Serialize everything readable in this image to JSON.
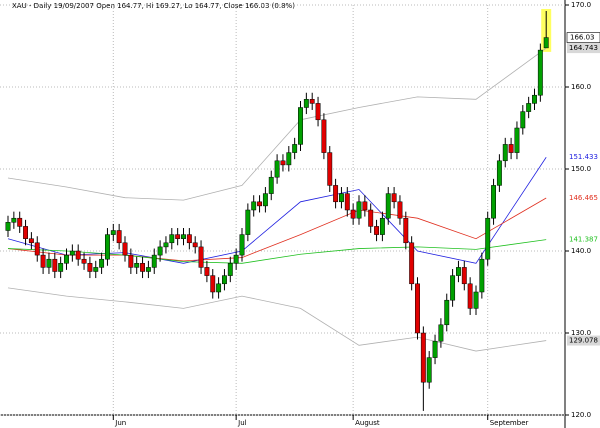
{
  "chart_data": {
    "type": "candlestick",
    "title": "XAU - Daily 19/09/2007 Open 164.77, Hi 169.27, Lo 164.77, Close 166.03 (0.8%)",
    "categories": [
      null,
      null,
      null,
      null,
      null,
      null,
      null,
      null,
      null,
      null,
      null,
      null,
      null,
      null,
      null,
      null,
      null,
      null,
      "Jun",
      null,
      null,
      null,
      null,
      null,
      null,
      null,
      null,
      null,
      null,
      null,
      null,
      null,
      null,
      null,
      null,
      null,
      null,
      null,
      null,
      "Jul",
      null,
      null,
      null,
      null,
      null,
      null,
      null,
      null,
      null,
      null,
      null,
      null,
      null,
      null,
      null,
      null,
      null,
      null,
      null,
      "August",
      null,
      null,
      null,
      null,
      null,
      null,
      null,
      null,
      null,
      null,
      null,
      null,
      null,
      null,
      null,
      null,
      null,
      null,
      null,
      null,
      null,
      null,
      "September",
      null,
      null,
      null,
      null,
      null,
      null,
      null,
      null,
      null,
      null
    ],
    "open": [
      142.5,
      143.5,
      144,
      143,
      141.5,
      141,
      139.5,
      138,
      139,
      137.5,
      138.5,
      139.5,
      140,
      139,
      138.5,
      137.5,
      138,
      139,
      142,
      142.5,
      141,
      139.5,
      138,
      138.5,
      137.5,
      138,
      139.5,
      140.5,
      141,
      142,
      141.5,
      142,
      141,
      140.5,
      138,
      137,
      135,
      136,
      137,
      138.5,
      139.5,
      142,
      145,
      146,
      145.5,
      147,
      149,
      151,
      150.5,
      152,
      153,
      157.5,
      158.5,
      158,
      156,
      152,
      148,
      146,
      147,
      145,
      144,
      146,
      145,
      143,
      142,
      144,
      147,
      146,
      144,
      141,
      136,
      130,
      124,
      127,
      129,
      131,
      134,
      137,
      138,
      136,
      133,
      135,
      139,
      144,
      148,
      151,
      153,
      152,
      155,
      157,
      158,
      159,
      164.77
    ],
    "high": [
      144.3,
      144.8,
      144.8,
      143.8,
      142.3,
      141.8,
      140.3,
      139.8,
      139.8,
      139.3,
      140.3,
      140.8,
      140.8,
      139.8,
      139.3,
      138.8,
      139.8,
      142.8,
      143.3,
      143.3,
      141.8,
      140.3,
      139.3,
      139.3,
      138.8,
      140.3,
      141.3,
      141.8,
      142.8,
      142.8,
      142.8,
      142.8,
      141.8,
      141.3,
      138.8,
      137.8,
      136.8,
      137.8,
      139.3,
      140.3,
      142.8,
      145.8,
      146.8,
      146.8,
      147.8,
      149.8,
      151.8,
      151.8,
      152.8,
      153.8,
      158.3,
      159.3,
      159.3,
      158.8,
      156.8,
      152.8,
      148.8,
      147.8,
      147.8,
      145.8,
      146.8,
      146.8,
      145.8,
      143.8,
      144.8,
      147.8,
      147.8,
      146.8,
      144.8,
      141.8,
      136.8,
      130.8,
      127.8,
      129.8,
      131.8,
      134.8,
      137.8,
      138.8,
      138.8,
      136.8,
      135.8,
      139.8,
      144.8,
      148.8,
      151.8,
      153.8,
      153.8,
      155.8,
      157.8,
      158.8,
      159.8,
      165.3,
      169.27
    ],
    "low": [
      141.7,
      142.7,
      142.2,
      140.7,
      140.2,
      138.7,
      137.2,
      137.2,
      136.7,
      136.7,
      137.7,
      138.7,
      138.2,
      137.7,
      136.7,
      136.7,
      137.2,
      138.2,
      141.2,
      140.2,
      138.7,
      137.2,
      137.2,
      136.7,
      136.7,
      137.2,
      138.7,
      139.7,
      140.2,
      140.7,
      140.7,
      140.2,
      139.7,
      137.2,
      136.2,
      134.2,
      134.2,
      135.2,
      136.2,
      137.7,
      138.7,
      141.2,
      144.2,
      144.7,
      144.7,
      146.2,
      148.2,
      149.7,
      149.7,
      151.2,
      152.2,
      156.7,
      157.2,
      155.2,
      151.2,
      147.2,
      145.2,
      145.2,
      144.2,
      143.2,
      143.2,
      144.2,
      142.2,
      141.2,
      141.2,
      143.2,
      145.2,
      143.2,
      140.2,
      135.2,
      129.2,
      120.5,
      123.2,
      126.2,
      128.2,
      130.2,
      133.2,
      136.2,
      135.2,
      132.2,
      132.2,
      134.2,
      138.2,
      143.2,
      147.2,
      150.2,
      151.2,
      151.2,
      154.2,
      156.2,
      157.2,
      158.2,
      164.77
    ],
    "close": [
      143.5,
      144,
      143,
      141.5,
      141,
      139.5,
      138,
      139,
      137.5,
      138.5,
      139.5,
      140,
      139,
      138.5,
      137.5,
      138,
      139,
      142,
      142.5,
      141,
      139.5,
      138,
      138.5,
      137.5,
      138,
      139.5,
      140.5,
      141,
      142,
      141.5,
      142,
      141,
      140.5,
      138,
      137,
      135,
      136,
      137,
      138.5,
      139.5,
      142,
      145,
      146,
      145.5,
      147,
      149,
      151,
      150.5,
      152,
      153,
      157.5,
      158.5,
      158,
      156,
      152,
      148,
      146,
      147,
      145,
      144,
      146,
      145,
      143,
      142,
      144,
      147,
      146,
      144,
      141,
      136,
      130,
      124,
      127,
      129,
      131,
      134,
      137,
      138,
      136,
      133,
      135,
      139,
      144,
      148,
      151,
      153,
      152,
      155,
      157,
      158,
      159,
      164.5,
      166.03
    ],
    "up_color": "#00a000",
    "down_color": "#e00000",
    "overlays": [
      {
        "color": "#b0b0b0",
        "x": [
          0,
          10,
          20,
          30,
          40,
          50,
          60,
          70,
          80,
          92
        ],
        "values": [
          148.9,
          147.8,
          146.5,
          146.2,
          148,
          156,
          157.5,
          158.8,
          158.5,
          164.743
        ]
      },
      {
        "color": "#b0b0b0",
        "x": [
          0,
          10,
          20,
          30,
          40,
          50,
          60,
          70,
          80,
          92
        ],
        "values": [
          135.5,
          134.5,
          133.8,
          133,
          134.5,
          133,
          128.5,
          129.5,
          127.8,
          129.078
        ]
      },
      {
        "color": "#2020e0",
        "x": [
          0,
          10,
          20,
          30,
          40,
          50,
          60,
          70,
          80,
          92
        ],
        "values": [
          141.5,
          139.5,
          139.8,
          138.5,
          140,
          146,
          147.5,
          140,
          138.5,
          151.433
        ]
      },
      {
        "color": "#e03020",
        "x": [
          0,
          10,
          20,
          30,
          40,
          50,
          60,
          70,
          80,
          92
        ],
        "values": [
          140.3,
          139.5,
          139.5,
          138.8,
          139.2,
          142,
          145,
          144,
          141.5,
          146.465
        ]
      },
      {
        "color": "#20c020",
        "x": [
          0,
          10,
          20,
          30,
          40,
          50,
          60,
          70,
          80,
          92
        ],
        "values": [
          140.3,
          140,
          139.5,
          138.7,
          138.5,
          139.6,
          140.3,
          140.5,
          140.2,
          141.387
        ]
      }
    ],
    "ylim": [
      120,
      170
    ],
    "yticks": [
      {
        "value": 120,
        "label": "120.0"
      },
      {
        "value": 130,
        "label": "130.0"
      },
      {
        "value": 140,
        "label": "140.0"
      },
      {
        "value": 150,
        "label": "150.0"
      },
      {
        "value": 160,
        "label": "160.0"
      },
      {
        "value": 170,
        "label": "170.0"
      }
    ],
    "grid": true
  }
}
